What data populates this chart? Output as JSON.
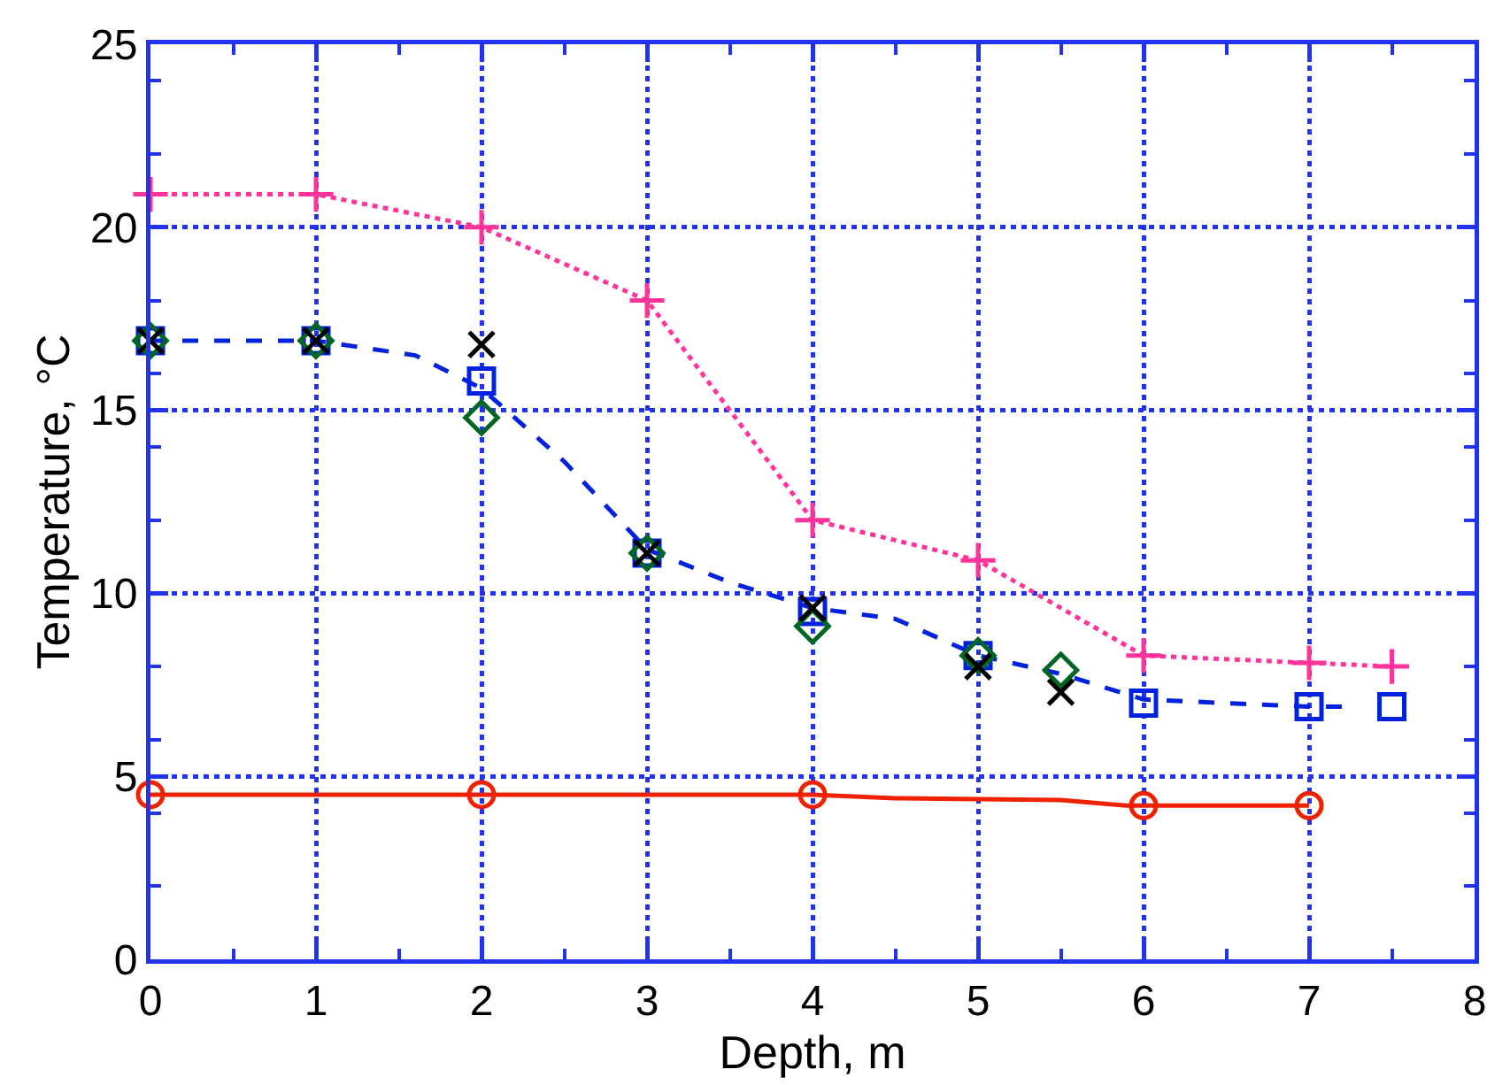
{
  "chart_data": {
    "type": "line",
    "xlabel": "Depth, m",
    "ylabel": "Temperature, °C",
    "xlim": [
      0,
      8
    ],
    "ylim": [
      0,
      25
    ],
    "xticks": [
      0,
      1,
      2,
      3,
      4,
      5,
      6,
      7,
      8
    ],
    "yticks": [
      0,
      5,
      10,
      15,
      20,
      25
    ],
    "grid": true,
    "series": [
      {
        "color": "#ff3399",
        "marker": "cross",
        "line_style": "dotted",
        "x": [
          0,
          1,
          2,
          3,
          4,
          5,
          6,
          7,
          7.5
        ],
        "values": [
          20.9,
          20.9,
          20,
          18,
          12,
          10.9,
          8.3,
          8.1,
          8
        ]
      },
      {
        "color": "#0022dd",
        "marker": "none",
        "line_style": "dashed",
        "x": [
          0,
          0.5,
          1,
          1.3,
          1.6,
          2,
          2.5,
          3,
          3.5,
          4,
          4.5,
          5,
          5.5,
          6,
          6.5,
          7,
          7.2
        ],
        "values": [
          16.9,
          16.9,
          16.9,
          16.7,
          16.5,
          15.6,
          13.6,
          11.2,
          10.3,
          9.6,
          9.3,
          8.3,
          7.8,
          7.1,
          7,
          6.9,
          6.9
        ]
      },
      {
        "type": "scatter",
        "color": "#0022dd",
        "marker": "square",
        "x": [
          0,
          1,
          2,
          3,
          4,
          5,
          6,
          7,
          7.5
        ],
        "values": [
          16.9,
          16.9,
          15.8,
          11.1,
          9.5,
          8.3,
          7,
          6.9,
          6.9
        ]
      },
      {
        "type": "scatter",
        "color": "#006622",
        "marker": "diamond",
        "x": [
          0,
          1,
          2,
          3,
          4,
          5,
          5.5
        ],
        "values": [
          16.9,
          16.9,
          14.8,
          11.1,
          9.1,
          8.3,
          7.9
        ]
      },
      {
        "type": "scatter",
        "color": "#000000",
        "marker": "x",
        "x": [
          0,
          1,
          2,
          3,
          4,
          5,
          5.5
        ],
        "values": [
          16.9,
          16.9,
          16.8,
          11.1,
          9.6,
          8,
          7.3
        ]
      },
      {
        "color": "#ee2200",
        "marker": "none",
        "line_style": "solid",
        "x": [
          0,
          4,
          4.5,
          5.5,
          5.9,
          7
        ],
        "values": [
          4.5,
          4.5,
          4.4,
          4.35,
          4.2,
          4.2
        ]
      },
      {
        "type": "scatter",
        "color": "#ee2200",
        "marker": "circle",
        "x": [
          0,
          2,
          4,
          6,
          7
        ],
        "values": [
          4.5,
          4.5,
          4.5,
          4.2,
          4.2
        ]
      }
    ]
  }
}
